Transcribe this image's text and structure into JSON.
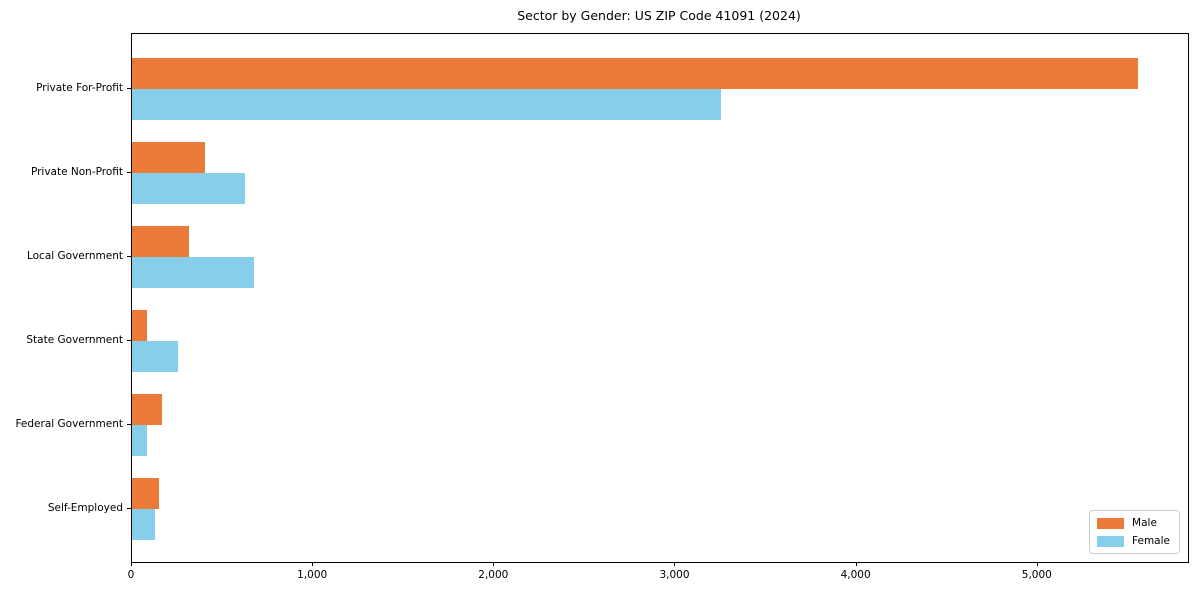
{
  "title": "Sector by Gender: US ZIP Code 41091 (2024)",
  "colors": {
    "male": "#EB7A39",
    "female": "#87CEEB",
    "axis": "#000000",
    "legend_border": "#cccccc",
    "background": "#ffffff"
  },
  "legend": {
    "position": "lower right",
    "items": [
      {
        "label": "Male",
        "color": "#EB7A39"
      },
      {
        "label": "Female",
        "color": "#87CEEB"
      }
    ]
  },
  "chart_data": {
    "type": "bar",
    "orientation": "horizontal",
    "title": "Sector by Gender: US ZIP Code 41091 (2024)",
    "xlabel": "",
    "ylabel": "",
    "categories": [
      "Private For-Profit",
      "Private Non-Profit",
      "Local Government",
      "State Government",
      "Federal Government",
      "Self-Employed"
    ],
    "series": [
      {
        "name": "Male",
        "color": "#EB7A39",
        "values": [
          5551,
          403,
          315,
          81,
          164,
          148
        ]
      },
      {
        "name": "Female",
        "color": "#87CEEB",
        "values": [
          3253,
          624,
          674,
          256,
          81,
          129
        ]
      }
    ],
    "xlim": [
      0,
      5829
    ],
    "xticks": [
      0,
      1000,
      2000,
      3000,
      4000,
      5000
    ],
    "xtick_labels": [
      "0",
      "1,000",
      "2,000",
      "3,000",
      "4,000",
      "5,000"
    ],
    "grid": false,
    "legend_position": "lower right"
  }
}
